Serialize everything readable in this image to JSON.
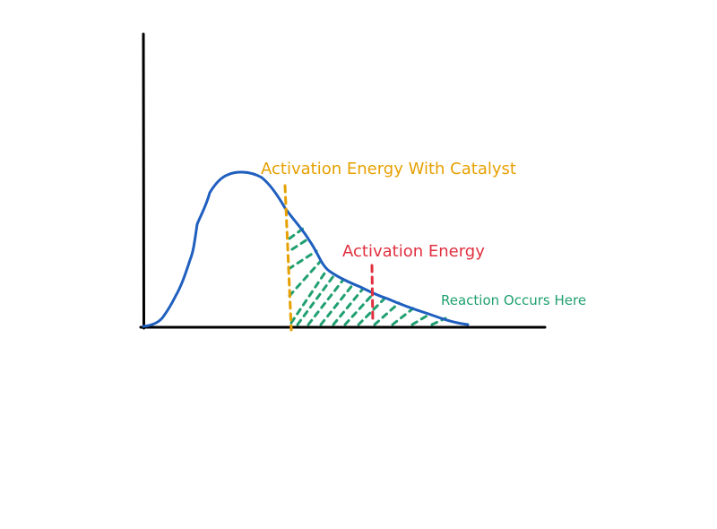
{
  "labels": {
    "catalyst": "Activation Energy With Catalyst",
    "activation": "Activation Energy",
    "reaction": "Reaction Occurs Here"
  },
  "colors": {
    "curve": "#1f5fbf",
    "catalyst": "#e6a000",
    "activation": "#e03040",
    "reaction": "#20a070",
    "axis": "#000000"
  }
}
